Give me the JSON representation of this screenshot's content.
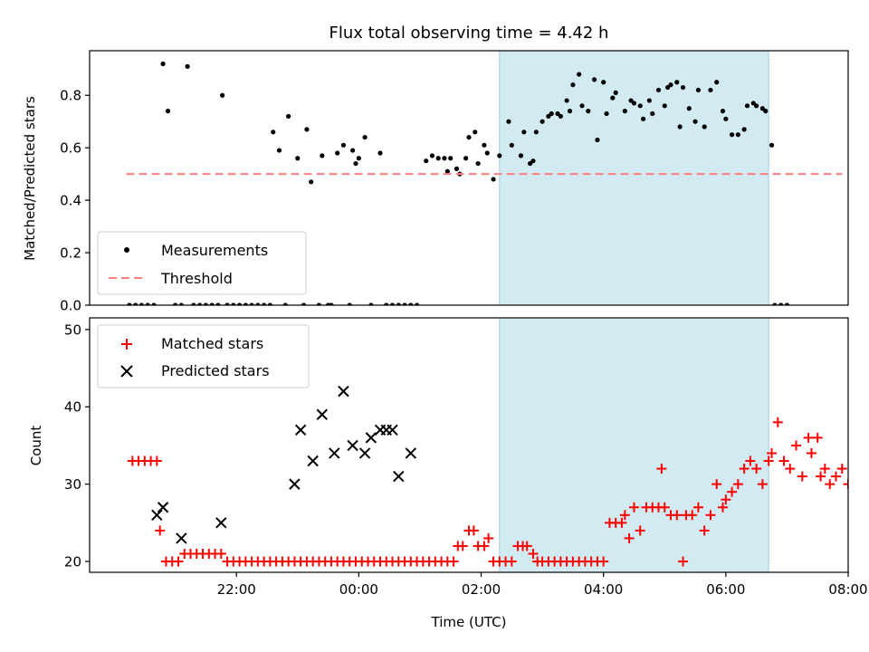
{
  "title": "Flux total observing time = 4.42 h",
  "colors": {
    "measurements": "#000000",
    "threshold": "#ff7f7f",
    "matched": "#ff0000",
    "predicted": "#000000",
    "window": "#add8e6"
  },
  "chart_data": [
    {
      "type": "scatter",
      "ylabel": "Matched/Predicted stars",
      "xlabel": "",
      "xlim": [
        -2.4,
        10.0
      ],
      "ylim": [
        0.0,
        0.97
      ],
      "yticks": [
        0.0,
        0.2,
        0.4,
        0.6,
        0.8
      ],
      "ytick_labels": [
        "0.0",
        "0.2",
        "0.4",
        "0.6",
        "0.8"
      ],
      "grid": false,
      "legend_position": "lower-left",
      "legend": [
        "Measurements",
        "Threshold"
      ],
      "shaded_window": [
        4.3,
        8.7
      ],
      "threshold": {
        "name": "Threshold",
        "value": 0.5,
        "x_range": [
          -1.8,
          9.9
        ]
      },
      "series": [
        {
          "name": "Measurements",
          "points": [
            [
              -1.75,
              0
            ],
            [
              -1.65,
              0
            ],
            [
              -1.55,
              0
            ],
            [
              -1.45,
              0
            ],
            [
              -1.35,
              0
            ],
            [
              -1.2,
              0.92
            ],
            [
              -1.12,
              0.74
            ],
            [
              -1.0,
              0
            ],
            [
              -0.9,
              0
            ],
            [
              -0.8,
              0.91
            ],
            [
              -0.7,
              0
            ],
            [
              -0.6,
              0
            ],
            [
              -0.5,
              0
            ],
            [
              -0.4,
              0
            ],
            [
              -0.3,
              0
            ],
            [
              -0.23,
              0.8
            ],
            [
              -0.15,
              0
            ],
            [
              -0.05,
              0
            ],
            [
              0.05,
              0
            ],
            [
              0.15,
              0
            ],
            [
              0.25,
              0
            ],
            [
              0.35,
              0
            ],
            [
              0.45,
              0
            ],
            [
              0.55,
              0
            ],
            [
              0.6,
              0.66
            ],
            [
              0.7,
              0.59
            ],
            [
              0.8,
              0
            ],
            [
              0.85,
              0.72
            ],
            [
              1.0,
              0.56
            ],
            [
              1.1,
              0
            ],
            [
              1.15,
              0.67
            ],
            [
              1.22,
              0.47
            ],
            [
              1.35,
              0
            ],
            [
              1.4,
              0.57
            ],
            [
              1.5,
              0
            ],
            [
              1.55,
              0
            ],
            [
              1.65,
              0.58
            ],
            [
              1.75,
              0.61
            ],
            [
              1.85,
              0
            ],
            [
              1.9,
              0.59
            ],
            [
              1.95,
              0.54
            ],
            [
              2.0,
              0.56
            ],
            [
              2.1,
              0.64
            ],
            [
              2.2,
              0
            ],
            [
              2.35,
              0.58
            ],
            [
              2.45,
              0
            ],
            [
              2.55,
              0
            ],
            [
              2.65,
              0
            ],
            [
              2.75,
              0
            ],
            [
              2.85,
              0
            ],
            [
              2.95,
              0
            ],
            [
              3.1,
              0.55
            ],
            [
              3.2,
              0.57
            ],
            [
              3.3,
              0.56
            ],
            [
              3.4,
              0.56
            ],
            [
              3.45,
              0.51
            ],
            [
              3.5,
              0.56
            ],
            [
              3.6,
              0.52
            ],
            [
              3.65,
              0.5
            ],
            [
              3.75,
              0.56
            ],
            [
              3.8,
              0.64
            ],
            [
              3.9,
              0.66
            ],
            [
              3.95,
              0.54
            ],
            [
              4.05,
              0.61
            ],
            [
              4.1,
              0.58
            ],
            [
              4.2,
              0.48
            ],
            [
              4.3,
              0.57
            ],
            [
              4.45,
              0.7
            ],
            [
              4.5,
              0.61
            ],
            [
              4.65,
              0.57
            ],
            [
              4.7,
              0.66
            ],
            [
              4.8,
              0.54
            ],
            [
              4.85,
              0.55
            ],
            [
              4.9,
              0.66
            ],
            [
              5.0,
              0.7
            ],
            [
              5.1,
              0.72
            ],
            [
              5.15,
              0.73
            ],
            [
              5.25,
              0.73
            ],
            [
              5.3,
              0.72
            ],
            [
              5.4,
              0.78
            ],
            [
              5.45,
              0.74
            ],
            [
              5.5,
              0.84
            ],
            [
              5.6,
              0.88
            ],
            [
              5.65,
              0.76
            ],
            [
              5.75,
              0.74
            ],
            [
              5.85,
              0.86
            ],
            [
              5.9,
              0.63
            ],
            [
              6.0,
              0.85
            ],
            [
              6.05,
              0.73
            ],
            [
              6.15,
              0.79
            ],
            [
              6.2,
              0.81
            ],
            [
              6.35,
              0.74
            ],
            [
              6.45,
              0.78
            ],
            [
              6.5,
              0.77
            ],
            [
              6.6,
              0.76
            ],
            [
              6.65,
              0.71
            ],
            [
              6.75,
              0.78
            ],
            [
              6.8,
              0.73
            ],
            [
              6.9,
              0.82
            ],
            [
              7.0,
              0.76
            ],
            [
              7.05,
              0.83
            ],
            [
              7.1,
              0.84
            ],
            [
              7.2,
              0.85
            ],
            [
              7.25,
              0.68
            ],
            [
              7.3,
              0.83
            ],
            [
              7.4,
              0.75
            ],
            [
              7.5,
              0.7
            ],
            [
              7.55,
              0.82
            ],
            [
              7.65,
              0.68
            ],
            [
              7.75,
              0.82
            ],
            [
              7.85,
              0.85
            ],
            [
              7.95,
              0.74
            ],
            [
              8.0,
              0.71
            ],
            [
              8.1,
              0.65
            ],
            [
              8.2,
              0.65
            ],
            [
              8.3,
              0.67
            ],
            [
              8.35,
              0.76
            ],
            [
              8.45,
              0.77
            ],
            [
              8.5,
              0.76
            ],
            [
              8.6,
              0.75
            ],
            [
              8.65,
              0.74
            ],
            [
              8.75,
              0.61
            ],
            [
              8.8,
              0
            ],
            [
              8.9,
              0
            ],
            [
              9.0,
              0
            ]
          ]
        }
      ]
    },
    {
      "type": "scatter",
      "ylabel": "Count",
      "xlabel": "Time (UTC)",
      "xlim": [
        -2.4,
        10.0
      ],
      "ylim": [
        18.6,
        51.5
      ],
      "yticks": [
        20,
        30,
        40,
        50
      ],
      "ytick_labels": [
        "20",
        "30",
        "40",
        "50"
      ],
      "xticks": [
        0,
        2,
        4,
        6,
        8,
        10
      ],
      "xtick_labels": [
        "22:00",
        "00:00",
        "02:00",
        "04:00",
        "06:00",
        "08:00"
      ],
      "grid": false,
      "legend_position": "upper-left",
      "legend": [
        "Matched stars",
        "Predicted stars"
      ],
      "shaded_window": [
        4.3,
        8.7
      ],
      "series": [
        {
          "name": "Matched stars",
          "points": [
            [
              -1.7,
              33
            ],
            [
              -1.6,
              33
            ],
            [
              -1.5,
              33
            ],
            [
              -1.4,
              33
            ],
            [
              -1.3,
              33
            ],
            [
              -1.25,
              24
            ],
            [
              -1.15,
              20
            ],
            [
              -1.05,
              20
            ],
            [
              -0.95,
              20
            ],
            [
              -0.85,
              21
            ],
            [
              -0.75,
              21
            ],
            [
              -0.65,
              21
            ],
            [
              -0.55,
              21
            ],
            [
              -0.45,
              21
            ],
            [
              -0.35,
              21
            ],
            [
              -0.25,
              21
            ],
            [
              -0.15,
              20
            ],
            [
              -0.05,
              20
            ],
            [
              0.05,
              20
            ],
            [
              0.15,
              20
            ],
            [
              0.25,
              20
            ],
            [
              0.35,
              20
            ],
            [
              0.45,
              20
            ],
            [
              0.55,
              20
            ],
            [
              0.65,
              20
            ],
            [
              0.75,
              20
            ],
            [
              0.85,
              20
            ],
            [
              0.95,
              20
            ],
            [
              1.05,
              20
            ],
            [
              1.15,
              20
            ],
            [
              1.25,
              20
            ],
            [
              1.35,
              20
            ],
            [
              1.45,
              20
            ],
            [
              1.55,
              20
            ],
            [
              1.65,
              20
            ],
            [
              1.75,
              20
            ],
            [
              1.85,
              20
            ],
            [
              1.95,
              20
            ],
            [
              2.05,
              20
            ],
            [
              2.15,
              20
            ],
            [
              2.25,
              20
            ],
            [
              2.35,
              20
            ],
            [
              2.45,
              20
            ],
            [
              2.55,
              20
            ],
            [
              2.65,
              20
            ],
            [
              2.75,
              20
            ],
            [
              2.85,
              20
            ],
            [
              2.95,
              20
            ],
            [
              3.05,
              20
            ],
            [
              3.15,
              20
            ],
            [
              3.25,
              20
            ],
            [
              3.35,
              20
            ],
            [
              3.45,
              20
            ],
            [
              3.55,
              20
            ],
            [
              3.62,
              22
            ],
            [
              3.7,
              22
            ],
            [
              3.8,
              24
            ],
            [
              3.88,
              24
            ],
            [
              3.95,
              22
            ],
            [
              4.05,
              22
            ],
            [
              4.12,
              23
            ],
            [
              4.2,
              20
            ],
            [
              4.3,
              20
            ],
            [
              4.4,
              20
            ],
            [
              4.5,
              20
            ],
            [
              4.6,
              22
            ],
            [
              4.68,
              22
            ],
            [
              4.75,
              22
            ],
            [
              4.85,
              21
            ],
            [
              4.92,
              20
            ],
            [
              5.0,
              20
            ],
            [
              5.1,
              20
            ],
            [
              5.2,
              20
            ],
            [
              5.3,
              20
            ],
            [
              5.4,
              20
            ],
            [
              5.5,
              20
            ],
            [
              5.6,
              20
            ],
            [
              5.7,
              20
            ],
            [
              5.8,
              20
            ],
            [
              5.9,
              20
            ],
            [
              6.0,
              20
            ],
            [
              6.1,
              25
            ],
            [
              6.2,
              25
            ],
            [
              6.3,
              25
            ],
            [
              6.35,
              26
            ],
            [
              6.42,
              23
            ],
            [
              6.5,
              27
            ],
            [
              6.6,
              24
            ],
            [
              6.7,
              27
            ],
            [
              6.8,
              27
            ],
            [
              6.9,
              27
            ],
            [
              6.95,
              32
            ],
            [
              7.0,
              27
            ],
            [
              7.1,
              26
            ],
            [
              7.2,
              26
            ],
            [
              7.3,
              20
            ],
            [
              7.35,
              26
            ],
            [
              7.45,
              26
            ],
            [
              7.55,
              27
            ],
            [
              7.65,
              24
            ],
            [
              7.75,
              26
            ],
            [
              7.85,
              30
            ],
            [
              7.95,
              27
            ],
            [
              8.0,
              28
            ],
            [
              8.1,
              29
            ],
            [
              8.2,
              30
            ],
            [
              8.3,
              32
            ],
            [
              8.4,
              33
            ],
            [
              8.5,
              32
            ],
            [
              8.6,
              30
            ],
            [
              8.7,
              33
            ],
            [
              8.75,
              34
            ],
            [
              8.85,
              38
            ],
            [
              8.95,
              33
            ],
            [
              9.05,
              32
            ],
            [
              9.15,
              35
            ],
            [
              9.25,
              31
            ],
            [
              9.35,
              36
            ],
            [
              9.4,
              34
            ],
            [
              9.5,
              36
            ],
            [
              9.55,
              31
            ],
            [
              9.62,
              32
            ],
            [
              9.7,
              30
            ],
            [
              9.8,
              31
            ],
            [
              9.9,
              32
            ],
            [
              10.0,
              30
            ]
          ]
        },
        {
          "name": "Predicted stars",
          "points": [
            [
              -1.3,
              26
            ],
            [
              -1.2,
              27
            ],
            [
              -0.9,
              23
            ],
            [
              -0.25,
              25
            ],
            [
              0.95,
              30
            ],
            [
              1.05,
              37
            ],
            [
              1.25,
              33
            ],
            [
              1.4,
              39
            ],
            [
              1.6,
              34
            ],
            [
              1.75,
              42
            ],
            [
              1.9,
              35
            ],
            [
              2.1,
              34
            ],
            [
              2.2,
              36
            ],
            [
              2.35,
              37
            ],
            [
              2.45,
              37
            ],
            [
              2.55,
              37
            ],
            [
              2.65,
              31
            ],
            [
              2.85,
              34
            ]
          ]
        }
      ]
    }
  ]
}
